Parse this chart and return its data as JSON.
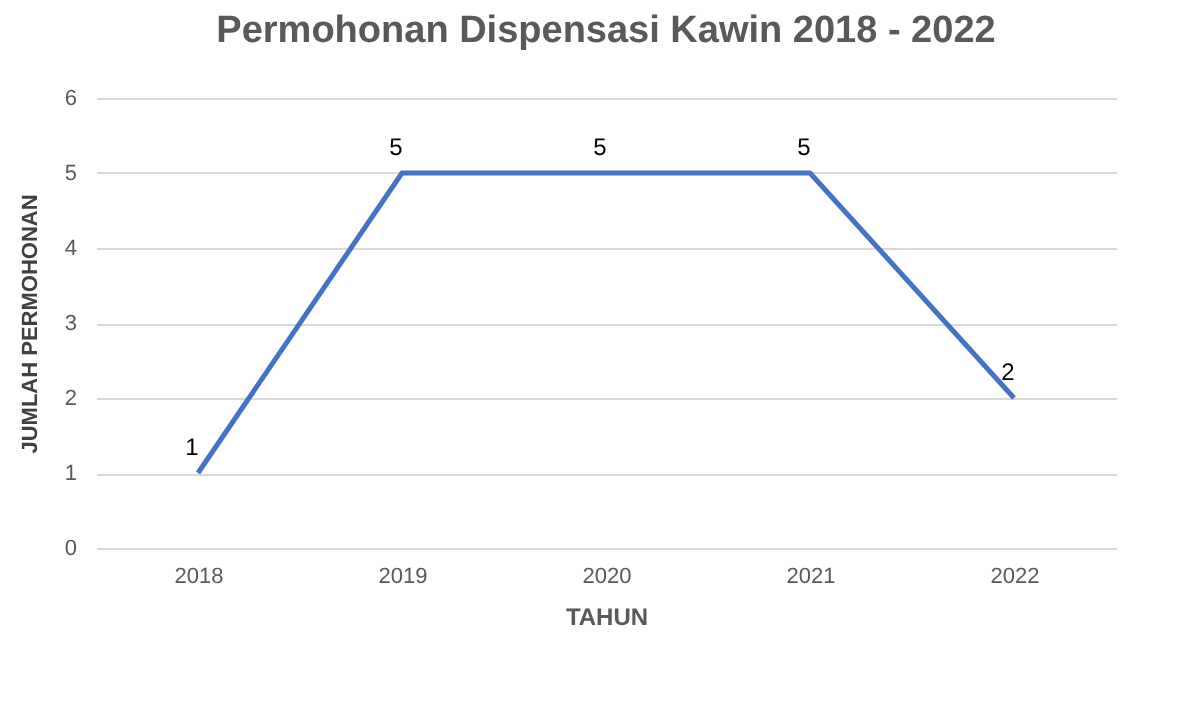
{
  "chart_data": {
    "type": "line",
    "title": "Permohonan Dispensasi Kawin 2018 - 2022",
    "xlabel": "TAHUN",
    "ylabel": "JUMLAH PERMOHONAN",
    "categories": [
      "2018",
      "2019",
      "2020",
      "2021",
      "2022"
    ],
    "series": [
      {
        "color": "#4472c4",
        "values": [
          1,
          5,
          5,
          5,
          2
        ]
      }
    ],
    "ylim": [
      0,
      6
    ],
    "yticks": [
      0,
      1,
      2,
      3,
      4,
      5,
      6
    ],
    "grid": "y",
    "data_labels": true,
    "marker": "none",
    "line_style": "solid",
    "legend": false
  }
}
